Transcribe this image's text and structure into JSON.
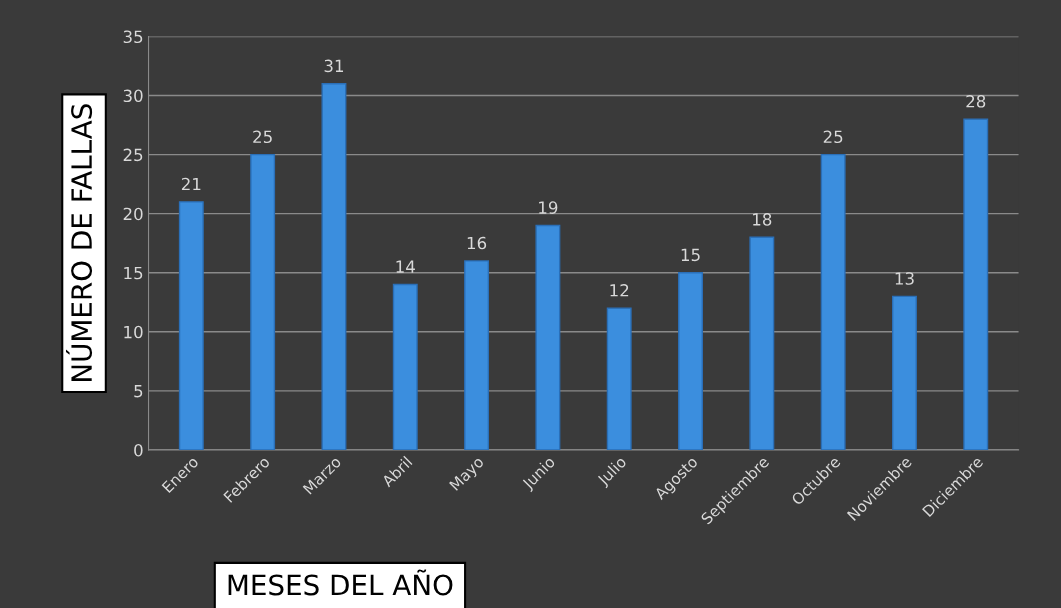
{
  "chart_data": {
    "type": "bar",
    "xlabel": "MESES DEL AÑO",
    "ylabel": "NÚMERO DE FALLAS",
    "categories": [
      "Enero",
      "Febrero",
      "Marzo",
      "Abril",
      "Mayo",
      "Junio",
      "Julio",
      "Agosto",
      "Septiembre",
      "Octubre",
      "Noviembre",
      "Diciembre"
    ],
    "values": [
      21,
      25,
      31,
      14,
      16,
      19,
      12,
      15,
      18,
      25,
      13,
      28
    ],
    "color": "#3b8ede",
    "ylim": [
      0,
      35
    ],
    "yticks": [
      0,
      5,
      10,
      15,
      20,
      25,
      30,
      35
    ],
    "grid": "y",
    "data_labels": true
  }
}
